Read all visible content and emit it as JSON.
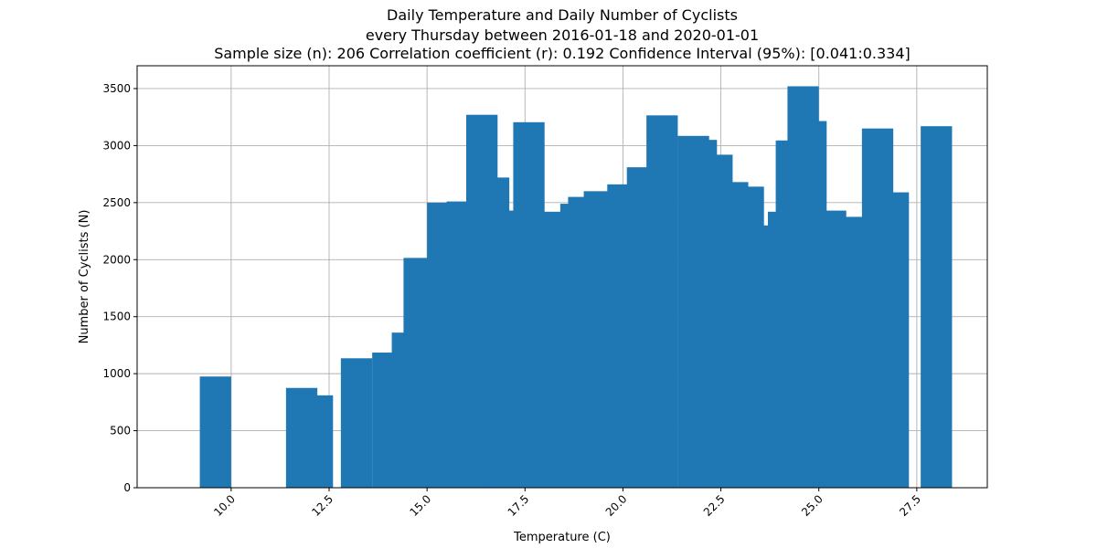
{
  "chart_data": {
    "type": "bar",
    "title": [
      "Daily Temperature and Daily Number of Cyclists",
      "every Thursday between 2016-01-18 and 2020-01-01",
      "Sample size (n): 206   Correlation coefficient (r): 0.192   Confidence Interval (95%): [0.041:0.334]"
    ],
    "xlabel": "Temperature (C)",
    "ylabel": "Number of Cyclists (N)",
    "xlim": [
      7.6,
      29.3
    ],
    "ylim": [
      0,
      3700
    ],
    "xticks": [
      10.0,
      12.5,
      15.0,
      17.5,
      20.0,
      22.5,
      25.0,
      27.5
    ],
    "xtick_labels": [
      "10.0",
      "12.5",
      "15.0",
      "17.5",
      "20.0",
      "22.5",
      "25.0",
      "27.5"
    ],
    "yticks": [
      0,
      500,
      1000,
      1500,
      2000,
      2500,
      3000,
      3500
    ],
    "ytick_labels": [
      "0",
      "500",
      "1000",
      "1500",
      "2000",
      "2500",
      "3000",
      "3500"
    ],
    "grid": true,
    "bar_color": "#1f77b4",
    "bar_width": 0.8,
    "points": [
      {
        "x": 9.6,
        "y": 975
      },
      {
        "x": 11.8,
        "y": 875
      },
      {
        "x": 12.2,
        "y": 810
      },
      {
        "x": 13.2,
        "y": 1135
      },
      {
        "x": 14.0,
        "y": 1185
      },
      {
        "x": 14.5,
        "y": 1360
      },
      {
        "x": 14.8,
        "y": 2015
      },
      {
        "x": 15.4,
        "y": 2500
      },
      {
        "x": 15.9,
        "y": 2510
      },
      {
        "x": 16.4,
        "y": 3270
      },
      {
        "x": 16.7,
        "y": 2720
      },
      {
        "x": 16.9,
        "y": 2430
      },
      {
        "x": 17.0,
        "y": 2300
      },
      {
        "x": 17.1,
        "y": 2200
      },
      {
        "x": 17.6,
        "y": 3205
      },
      {
        "x": 18.3,
        "y": 2420
      },
      {
        "x": 18.8,
        "y": 2490
      },
      {
        "x": 19.0,
        "y": 2550
      },
      {
        "x": 19.4,
        "y": 2600
      },
      {
        "x": 20.0,
        "y": 2660
      },
      {
        "x": 20.5,
        "y": 2810
      },
      {
        "x": 21.0,
        "y": 3265
      },
      {
        "x": 21.8,
        "y": 3085
      },
      {
        "x": 22.0,
        "y": 3050
      },
      {
        "x": 22.1,
        "y": 2745
      },
      {
        "x": 22.4,
        "y": 2920
      },
      {
        "x": 22.8,
        "y": 2680
      },
      {
        "x": 23.2,
        "y": 2640
      },
      {
        "x": 23.6,
        "y": 2300
      },
      {
        "x": 24.1,
        "y": 2420
      },
      {
        "x": 24.3,
        "y": 3045
      },
      {
        "x": 24.6,
        "y": 3520
      },
      {
        "x": 24.8,
        "y": 3215
      },
      {
        "x": 25.3,
        "y": 2430
      },
      {
        "x": 25.8,
        "y": 2375
      },
      {
        "x": 26.0,
        "y": 2130
      },
      {
        "x": 26.5,
        "y": 3150
      },
      {
        "x": 26.9,
        "y": 2590
      },
      {
        "x": 28.0,
        "y": 3170
      }
    ]
  }
}
